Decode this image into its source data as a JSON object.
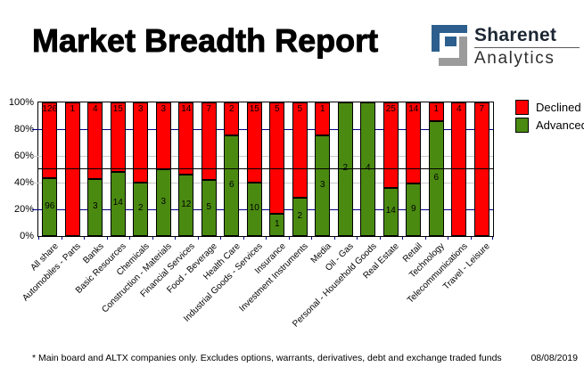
{
  "header": {
    "title": "Market Breadth Report",
    "logo": {
      "line1": "Sharenet",
      "line2": "Analytics"
    }
  },
  "legend": [
    {
      "label": "Declined",
      "color": "#ff0000"
    },
    {
      "label": "Advanced",
      "color": "#4a8a10"
    }
  ],
  "footer": {
    "note": "* Main board and ALTX companies only. Excludes options, warrants, derivatives, debt and exchange traded funds",
    "date": "08/08/2019"
  },
  "colors": {
    "declined": "#ff0000",
    "advanced": "#4a8a10",
    "grid_navy": "#000080",
    "grid_gray": "#c9c9c9",
    "reference_line": "#000000",
    "logo_blue": "#2d5f8e",
    "logo_gray": "#9b9b9b"
  },
  "chart_data": {
    "type": "bar",
    "stacked": true,
    "normalized_to_percent": true,
    "title": "Market Breadth Report",
    "categories": [
      "All share",
      "Automobiles - Parts",
      "Banks",
      "Basic Resources",
      "Chemicals",
      "Construction - Materials",
      "Financial Services",
      "Food - Beverage",
      "Health Care",
      "Industrial Goods - Services",
      "Insurance",
      "Investment Instruments",
      "Media",
      "Oil - Gas",
      "Personal - Household Goods",
      "Real Estate",
      "Retail",
      "Technology",
      "Telecommunications",
      "Travel - Leisure"
    ],
    "series": [
      {
        "name": "Declined",
        "color": "#ff0000",
        "values": [
          126,
          1,
          4,
          15,
          3,
          3,
          14,
          7,
          2,
          15,
          5,
          5,
          1,
          0,
          0,
          25,
          14,
          1,
          4,
          7
        ]
      },
      {
        "name": "Advanced",
        "color": "#4a8a10",
        "values": [
          96,
          0,
          3,
          14,
          2,
          3,
          12,
          5,
          6,
          10,
          1,
          2,
          3,
          2,
          4,
          14,
          9,
          6,
          0,
          0
        ]
      }
    ],
    "y_ticks": [
      "100%",
      "80%",
      "60%",
      "40%",
      "20%",
      "0%"
    ],
    "ylim": [
      0,
      100
    ],
    "reference_line_pct": 50,
    "grid": [
      {
        "level": 80,
        "color": "#000080"
      },
      {
        "level": 60,
        "color": "#c9c9c9"
      },
      {
        "level": 40,
        "color": "#c9c9c9"
      },
      {
        "level": 20,
        "color": "#000080"
      }
    ],
    "legend_position": "right",
    "bar_value_labels": "counts shown inside segments"
  }
}
